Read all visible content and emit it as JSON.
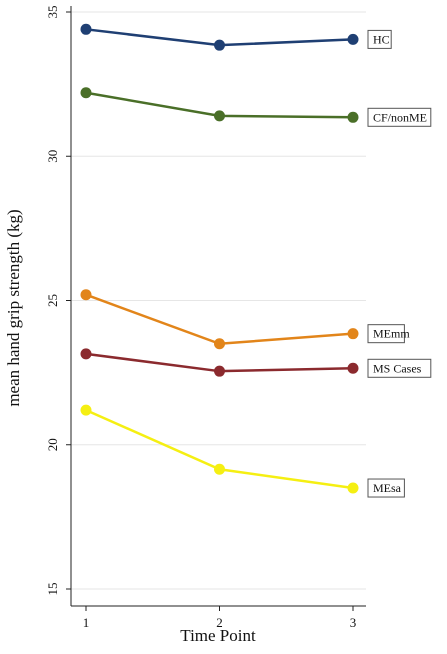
{
  "chart_data": {
    "type": "line",
    "title": "",
    "xlabel": "Time Point",
    "ylabel": "mean hand grip strength (kg)",
    "x": [
      1,
      2,
      3
    ],
    "xticks": [
      "1",
      "2",
      "3"
    ],
    "yticks": [
      "15",
      "20",
      "25",
      "30",
      "35"
    ],
    "ylim": [
      15,
      35
    ],
    "xlim": [
      1,
      3
    ],
    "grid": true,
    "legend": "right (labels boxed at series line ends)",
    "series": [
      {
        "name": "HC",
        "values": [
          34.4,
          33.85,
          34.05
        ],
        "color": "#1f3f73"
      },
      {
        "name": "CF/nonME",
        "values": [
          32.2,
          31.4,
          31.35
        ],
        "color": "#4a6f28"
      },
      {
        "name": "MEmm",
        "values": [
          25.2,
          23.5,
          23.85
        ],
        "color": "#e2851a"
      },
      {
        "name": "MS Cases",
        "values": [
          23.15,
          22.55,
          22.65
        ],
        "color": "#8b2a2e"
      },
      {
        "name": "MEsa",
        "values": [
          21.2,
          19.15,
          18.5
        ],
        "color": "#f5ef12"
      }
    ]
  }
}
